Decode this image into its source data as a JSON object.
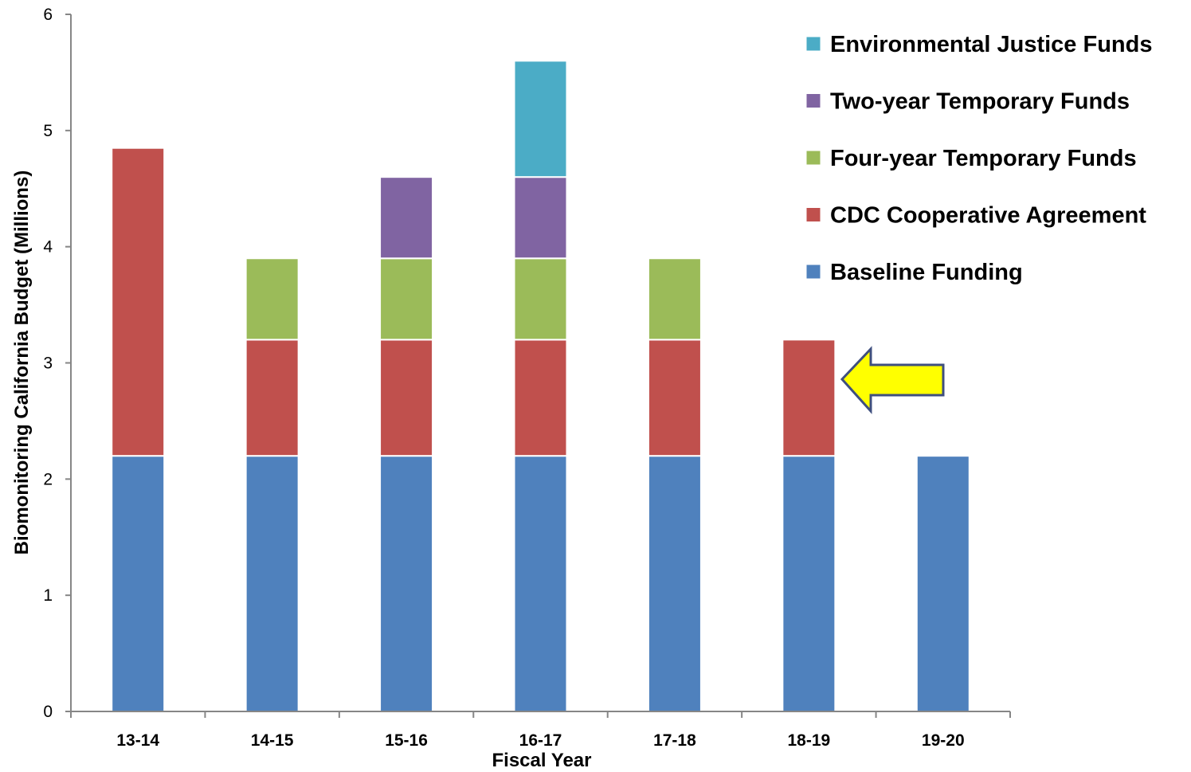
{
  "chart_data": {
    "type": "bar",
    "stacked": true,
    "categories": [
      "13-14",
      "14-15",
      "15-16",
      "16-17",
      "17-18",
      "18-19",
      "19-20"
    ],
    "series": [
      {
        "name": "Baseline Funding",
        "color": "#4F81BD",
        "values": [
          2.2,
          2.2,
          2.2,
          2.2,
          2.2,
          2.2,
          2.2
        ]
      },
      {
        "name": "CDC Cooperative Agreement",
        "color": "#C0504D",
        "values": [
          2.65,
          1.0,
          1.0,
          1.0,
          1.0,
          1.0,
          0
        ]
      },
      {
        "name": "Four-year Temporary Funds",
        "color": "#9BBB59",
        "values": [
          0,
          0.7,
          0.7,
          0.7,
          0.7,
          0,
          0
        ]
      },
      {
        "name": "Two-year Temporary Funds",
        "color": "#8064A2",
        "values": [
          0,
          0,
          0.7,
          0.7,
          0,
          0,
          0
        ]
      },
      {
        "name": "Environmental Justice Funds",
        "color": "#4BACC6",
        "values": [
          0,
          0,
          0,
          1.0,
          0,
          0,
          0
        ]
      }
    ],
    "xlabel": "Fiscal Year",
    "ylabel": "Biomonitoring California Budget (Millions)",
    "ylim": [
      0,
      6
    ],
    "yticks": [
      "0",
      "1",
      "2",
      "3",
      "4",
      "5",
      "6"
    ],
    "grid": false,
    "legend_position": "top-right",
    "legend_order": [
      "Environmental Justice Funds",
      "Two-year Temporary Funds",
      "Four-year Temporary Funds",
      "CDC Cooperative Agreement",
      "Baseline Funding"
    ],
    "annotation": {
      "shape": "arrow",
      "points_to": "18-19",
      "color": "#FFFF00"
    }
  }
}
